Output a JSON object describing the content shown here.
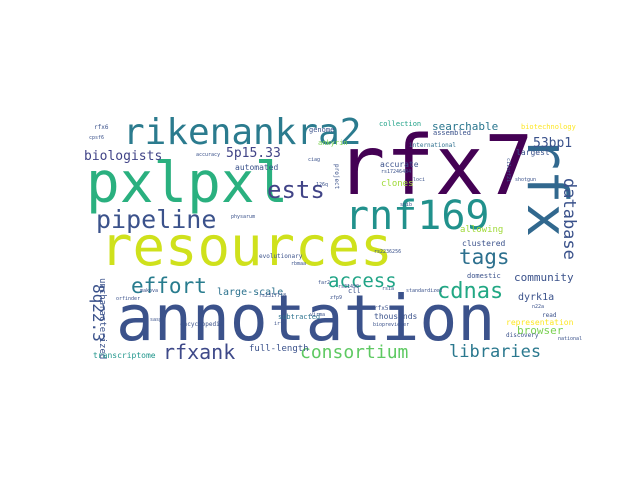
{
  "words": [
    {
      "text": "annotation",
      "color": "#3b528b"
    },
    {
      "text": "resources",
      "color": "#cfe11c"
    },
    {
      "text": "pxlpxl",
      "color": "#2ab07f"
    },
    {
      "text": "rfx7",
      "color": "#440154"
    },
    {
      "text": "rikenankra2",
      "color": "#2b7b8e"
    },
    {
      "text": "rnf169",
      "color": "#21918c"
    },
    {
      "text": "rfx",
      "color": "#31688e"
    },
    {
      "text": "pipeline",
      "color": "#3b528b"
    },
    {
      "text": "ests",
      "color": "#414487"
    },
    {
      "text": "effort",
      "color": "#287c8e"
    },
    {
      "text": "cdnas",
      "color": "#22a884"
    },
    {
      "text": "tags",
      "color": "#2d708e"
    },
    {
      "text": "access",
      "color": "#20a486"
    },
    {
      "text": "consortium",
      "color": "#5ec962"
    },
    {
      "text": "libraries",
      "color": "#2a788e"
    },
    {
      "text": "rfxank",
      "color": "#3e4989"
    },
    {
      "text": "database",
      "color": "#3b528b"
    },
    {
      "text": "8q22.3",
      "color": "#3b528b"
    },
    {
      "text": "5p15.33",
      "color": "#414487"
    },
    {
      "text": "biologists",
      "color": "#404387"
    },
    {
      "text": "53bp1",
      "color": "#3b528b"
    },
    {
      "text": "searchable",
      "color": "#2a768e"
    },
    {
      "text": "community",
      "color": "#3b528b"
    },
    {
      "text": "browser",
      "color": "#7ad151"
    },
    {
      "text": "large-scale",
      "color": "#2c728e"
    },
    {
      "text": "dyrk1a",
      "color": "#3b528b"
    },
    {
      "text": "uncharacterized",
      "color": "#3b528b"
    },
    {
      "text": "full-length",
      "color": "#3b528b"
    },
    {
      "text": "transcriptome",
      "color": "#1f958b"
    },
    {
      "text": "representation",
      "color": "#fde725"
    },
    {
      "text": "thousands",
      "color": "#3b528b"
    },
    {
      "text": "subtracted",
      "color": "#2c728e"
    },
    {
      "text": "allowing",
      "color": "#a0da39"
    },
    {
      "text": "clustered",
      "color": "#3b528b"
    },
    {
      "text": "domestic",
      "color": "#3b528b"
    },
    {
      "text": "automated",
      "color": "#3b528b"
    },
    {
      "text": "accurate",
      "color": "#3b528b"
    },
    {
      "text": "clones",
      "color": "#a0da39"
    },
    {
      "text": "assembled",
      "color": "#3b528b"
    },
    {
      "text": "collection",
      "color": "#1fa187"
    },
    {
      "text": "international",
      "color": "#2e6f8e"
    },
    {
      "text": "genome",
      "color": "#3b528b"
    },
    {
      "text": "ankyrin",
      "color": "#7ad151"
    },
    {
      "text": "biotechnology",
      "color": "#fde725"
    },
    {
      "text": "largest",
      "color": "#3b528b"
    },
    {
      "text": "discovery",
      "color": "#3b528b"
    },
    {
      "text": "read",
      "color": "#3b528b"
    },
    {
      "text": "encyclopedia",
      "color": "#3b528b"
    },
    {
      "text": "cll",
      "color": "#3b528b"
    },
    {
      "text": "rfx6",
      "color": "#3b528b"
    },
    {
      "text": "rfx5",
      "color": "#3b528b"
    },
    {
      "text": "project",
      "color": "#3b528b"
    },
    {
      "text": "evolutionary",
      "color": "#3b528b"
    },
    {
      "text": "standardized",
      "color": "#3b528b"
    },
    {
      "text": "national",
      "color": "#3b528b"
    },
    {
      "text": "accuracy",
      "color": "#3b528b"
    },
    {
      "text": "cpsf6",
      "color": "#3b528b"
    },
    {
      "text": "loci",
      "color": "#3b528b"
    },
    {
      "text": "shotgun",
      "color": "#3b528b"
    },
    {
      "text": "rs2236256",
      "color": "#3b528b"
    },
    {
      "text": "rs17246404",
      "color": "#3b528b"
    },
    {
      "text": "rs31490",
      "color": "#3b528b"
    },
    {
      "text": "zfp9",
      "color": "#3b528b"
    },
    {
      "text": "n22a",
      "color": "#3b528b"
    },
    {
      "text": "virma",
      "color": "#3b528b"
    },
    {
      "text": "makova",
      "color": "#3b528b"
    },
    {
      "text": "orfinder",
      "color": "#3b528b"
    },
    {
      "text": "sasp",
      "color": "#3b528b"
    },
    {
      "text": "snib",
      "color": "#3b528b"
    },
    {
      "text": "rsia",
      "color": "#3b528b"
    },
    {
      "text": "far2",
      "color": "#3b528b"
    },
    {
      "text": "ciag",
      "color": "#3b528b"
    },
    {
      "text": "126q",
      "color": "#3b528b"
    },
    {
      "text": "physarum",
      "color": "#3b528b"
    },
    {
      "text": "c11orf21",
      "color": "#3b528b"
    },
    {
      "text": "rbmaa",
      "color": "#3b528b"
    },
    {
      "text": "biopreviewer",
      "color": "#3b528b"
    },
    {
      "text": "irfs",
      "color": "#3b528b"
    },
    {
      "text": "rs2317718",
      "color": "#3b528b"
    }
  ]
}
